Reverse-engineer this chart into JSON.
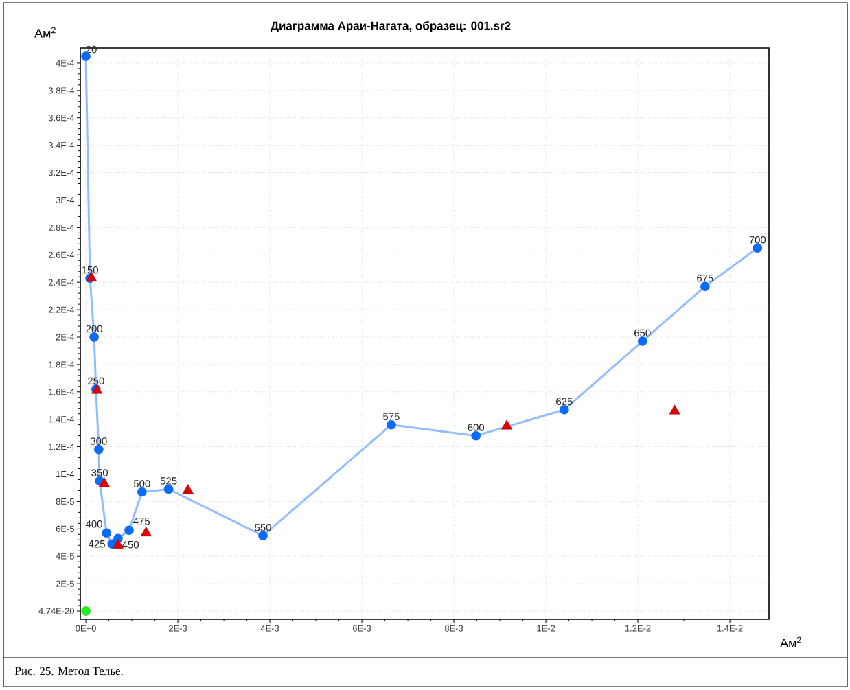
{
  "chart_data": {
    "type": "scatter",
    "title": "Диаграмма Араи-Нагата, образец: 001.sr2",
    "xlabel": "Ам$^{2}$",
    "ylabel": "Ам$^{2}$",
    "annotations": [
      "Рис. 25. Метод Телье.",
      {
        "text": "20",
        "x": 0,
        "y": 0.000405
      },
      {
        "text": "150",
        "x": 9e-05,
        "y": 0.000243
      },
      {
        "text": "200",
        "x": 0.00018,
        "y": 0.0002
      },
      {
        "text": "250",
        "x": 0.00022,
        "y": 0.000162
      },
      {
        "text": "300",
        "x": 0.00028,
        "y": 0.000118
      },
      {
        "text": "350",
        "x": 0.0003,
        "y": 9.5e-05
      },
      {
        "text": "400",
        "x": 0.00045,
        "y": 5.7e-05
      },
      {
        "text": "425",
        "x": 0.00057,
        "y": 4.9e-05
      },
      {
        "text": "450",
        "x": 0.0007,
        "y": 5.3e-05
      },
      {
        "text": "475",
        "x": 0.00094,
        "y": 5.9e-05
      },
      {
        "text": "500",
        "x": 0.00122,
        "y": 8.7e-05
      },
      {
        "text": "525",
        "x": 0.0018,
        "y": 8.9e-05
      },
      {
        "text": "550",
        "x": 0.00385,
        "y": 5.5e-05
      },
      {
        "text": "575",
        "x": 0.00664,
        "y": 0.000136
      },
      {
        "text": "600",
        "x": 0.00848,
        "y": 0.000128
      },
      {
        "text": "625",
        "x": 0.0104,
        "y": 0.000147
      },
      {
        "text": "650",
        "x": 0.0121,
        "y": 0.000197
      },
      {
        "text": "675",
        "x": 0.01346,
        "y": 0.000237
      },
      {
        "text": "700",
        "x": 0.0146,
        "y": 0.000265
      }
    ],
    "xlim": [
      -0.00012,
      0.01485
    ],
    "ylim": [
      -6e-06,
      0.000411
    ],
    "xticks": [
      {
        "value": 0,
        "label": "0E+0"
      },
      {
        "value": 0.002,
        "label": "2E-3"
      },
      {
        "value": 0.004,
        "label": "4E-3"
      },
      {
        "value": 0.006,
        "label": "6E-3"
      },
      {
        "value": 0.008,
        "label": "8E-3"
      },
      {
        "value": 0.01,
        "label": "1E-2"
      },
      {
        "value": 0.012,
        "label": "1.2E-2"
      },
      {
        "value": 0.014,
        "label": "1.4E-2"
      }
    ],
    "yticks": [
      {
        "value": 4.74e-20,
        "label": "4.74E-20"
      },
      {
        "value": 2e-05,
        "label": "2E-5"
      },
      {
        "value": 4e-05,
        "label": "4E-5"
      },
      {
        "value": 6e-05,
        "label": "6E-5"
      },
      {
        "value": 8e-05,
        "label": "8E-5"
      },
      {
        "value": 0.0001,
        "label": "1E-4"
      },
      {
        "value": 0.00012,
        "label": "1.2E-4"
      },
      {
        "value": 0.00014,
        "label": "1.4E-4"
      },
      {
        "value": 0.00016,
        "label": "1.6E-4"
      },
      {
        "value": 0.00018,
        "label": "1.8E-4"
      },
      {
        "value": 0.0002,
        "label": "2E-4"
      },
      {
        "value": 0.00022,
        "label": "2.2E-4"
      },
      {
        "value": 0.00024,
        "label": "2.4E-4"
      },
      {
        "value": 0.00026,
        "label": "2.6E-4"
      },
      {
        "value": 0.00028,
        "label": "2.8E-4"
      },
      {
        "value": 0.0003,
        "label": "3E-4"
      },
      {
        "value": 0.00032,
        "label": "3.2E-4"
      },
      {
        "value": 0.00034,
        "label": "3.4E-4"
      },
      {
        "value": 0.00036,
        "label": "3.6E-4"
      },
      {
        "value": 0.00038,
        "label": "3.8E-4"
      },
      {
        "value": 0.0004,
        "label": "4E-4"
      }
    ],
    "grid": true,
    "series": [
      {
        "type": "line",
        "color": "#0a6cff",
        "marker": "circle",
        "line_style": "solid",
        "x": [
          0,
          9e-05,
          0.00018,
          0.00022,
          0.00028,
          0.0003,
          0.00045,
          0.00057,
          0.0007,
          0.00094,
          0.00122,
          0.0018,
          0.00385,
          0.00664,
          0.00848,
          0.0104,
          0.0121,
          0.01346,
          0.0146
        ],
        "values": [
          0.000405,
          0.000243,
          0.0002,
          0.000162,
          0.000118,
          9.5e-05,
          5.7e-05,
          4.9e-05,
          5.3e-05,
          5.9e-05,
          8.7e-05,
          8.9e-05,
          5.5e-05,
          0.000136,
          0.000128,
          0.000147,
          0.000197,
          0.000237,
          0.000265
        ]
      },
      {
        "color": "#e00000",
        "marker": "triangle",
        "x": [
          0.00012,
          0.00024,
          0.0004,
          0.0007,
          0.00131,
          0.00222,
          0.00915,
          0.0128
        ],
        "values": [
          0.000243,
          0.000161,
          9.3e-05,
          4.8e-05,
          5.7e-05,
          8.8e-05,
          0.000135,
          0.000146
        ]
      },
      {
        "color": "#22ee22",
        "marker": "circle",
        "x": [
          0
        ],
        "values": [
          0
        ]
      }
    ]
  }
}
